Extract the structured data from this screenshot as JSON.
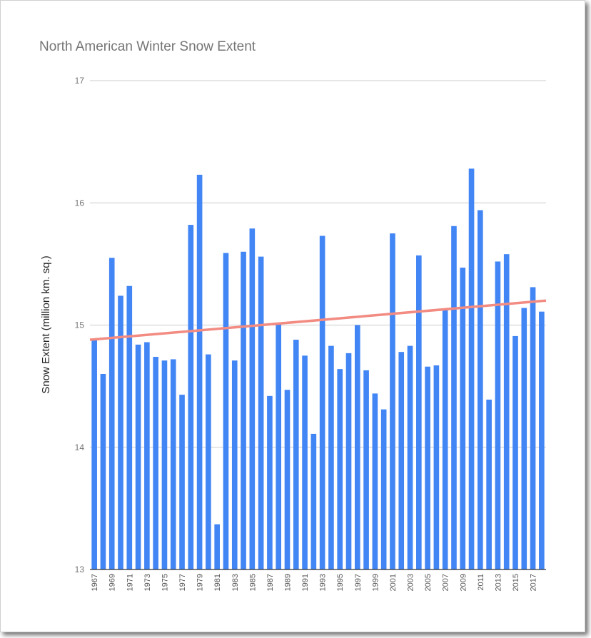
{
  "chart_data": {
    "type": "bar",
    "title": "North American Winter Snow Extent",
    "xlabel": "",
    "ylabel": "Snow Extent (million km. sq.)",
    "ylim": [
      13,
      17
    ],
    "yticks": [
      "13",
      "14",
      "15",
      "16",
      "17"
    ],
    "grid": true,
    "categories": [
      "1967",
      "1968",
      "1969",
      "1970",
      "1971",
      "1972",
      "1973",
      "1974",
      "1975",
      "1976",
      "1977",
      "1978",
      "1979",
      "1980",
      "1981",
      "1982",
      "1983",
      "1984",
      "1985",
      "1986",
      "1987",
      "1988",
      "1989",
      "1990",
      "1991",
      "1992",
      "1993",
      "1994",
      "1995",
      "1996",
      "1997",
      "1998",
      "1999",
      "2000",
      "2001",
      "2002",
      "2003",
      "2004",
      "2005",
      "2006",
      "2007",
      "2008",
      "2009",
      "2010",
      "2011",
      "2012",
      "2013",
      "2014",
      "2015",
      "2016",
      "2017",
      "2018"
    ],
    "xtick_labels": [
      "1967",
      "1969",
      "1971",
      "1973",
      "1975",
      "1977",
      "1979",
      "1981",
      "1983",
      "1985",
      "1987",
      "1989",
      "1991",
      "1993",
      "1995",
      "1997",
      "1999",
      "2001",
      "2003",
      "2005",
      "2007",
      "2009",
      "2011",
      "2013",
      "2015",
      "2017"
    ],
    "values": [
      14.88,
      14.6,
      15.55,
      15.24,
      15.32,
      14.84,
      14.86,
      14.74,
      14.71,
      14.72,
      14.43,
      15.82,
      16.23,
      14.76,
      13.37,
      15.59,
      14.71,
      15.6,
      15.79,
      15.56,
      14.42,
      15.01,
      14.47,
      14.88,
      14.75,
      14.11,
      15.73,
      14.83,
      14.64,
      14.77,
      15.0,
      14.63,
      14.44,
      14.31,
      15.75,
      14.78,
      14.83,
      15.57,
      14.66,
      14.67,
      15.12,
      15.81,
      15.47,
      16.28,
      15.94,
      14.39,
      15.52,
      15.58,
      14.91,
      15.14,
      15.31,
      15.11
    ],
    "trendline": {
      "start": 14.88,
      "end": 15.2
    },
    "colors": {
      "bar": "#4285f4",
      "trend": "#f28b82",
      "grid": "#cccccc",
      "axis": "#333333"
    }
  }
}
